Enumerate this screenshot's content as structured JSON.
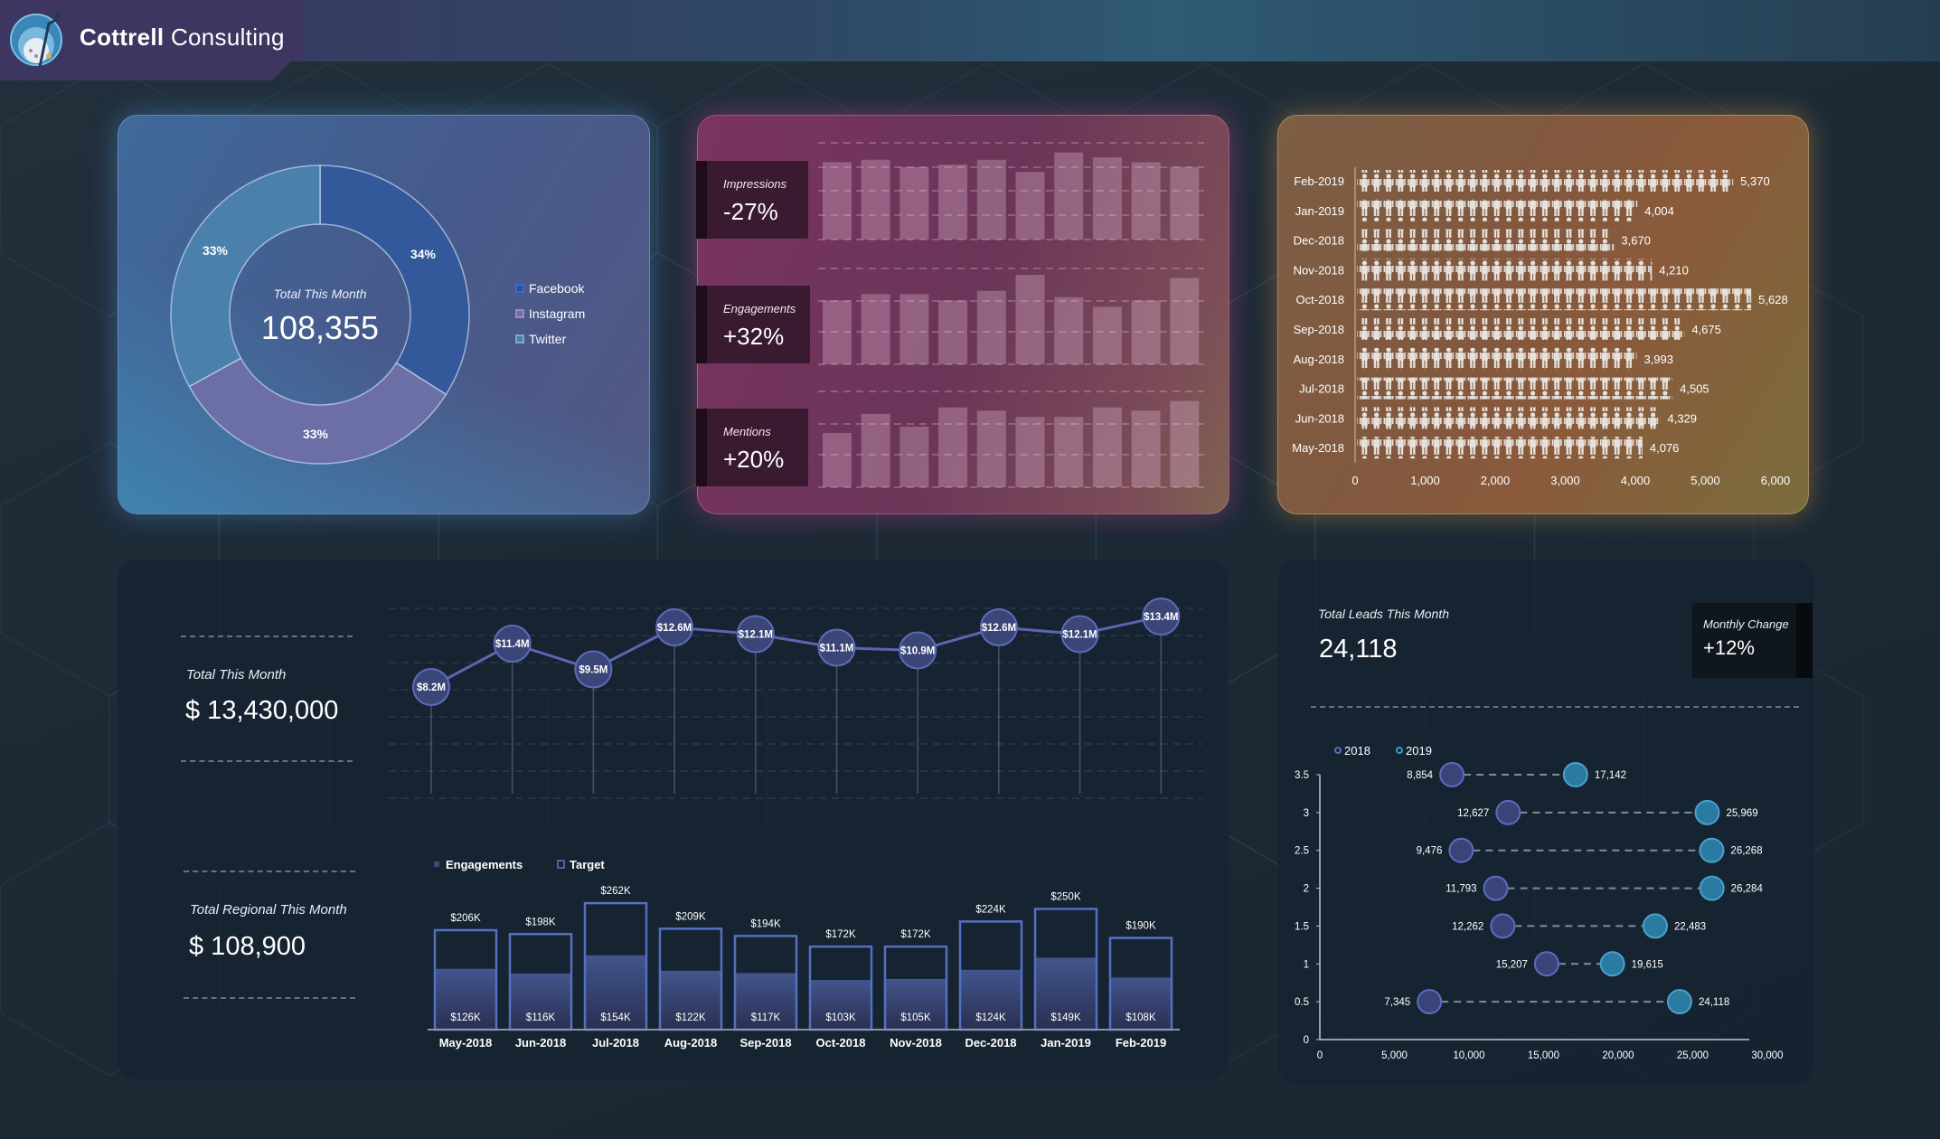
{
  "header": {
    "brand_bold": "Cottrell",
    "brand_rest": "Consulting"
  },
  "colors": {
    "facebook": "#33599a",
    "instagram": "#6b6fa6",
    "twitter": "#4a80ab",
    "line": "#5a66b0",
    "dot2018": "#3b4478",
    "dot2019": "#2b7aa2"
  },
  "social": {
    "center_label": "Total This Month",
    "center_value": "108,355",
    "slices": [
      {
        "name": "Facebook",
        "percent": 34,
        "label": "34%"
      },
      {
        "name": "Instagram",
        "percent": 33,
        "label": "33%"
      },
      {
        "name": "Twitter",
        "percent": 33,
        "label": "33%"
      }
    ]
  },
  "metrics": [
    {
      "label": "Impressions",
      "change": "-27%",
      "values": [
        3.2,
        3.3,
        3.0,
        3.1,
        3.3,
        2.8,
        3.6,
        3.4,
        3.2,
        3.0
      ],
      "max": 4
    },
    {
      "label": "Engagements",
      "change": "+32%",
      "values": [
        2.0,
        2.2,
        2.2,
        2.0,
        2.3,
        2.8,
        2.1,
        1.8,
        2.0,
        2.7
      ],
      "max": 3
    },
    {
      "label": "Mentions",
      "change": "+20%",
      "values": [
        1.7,
        2.3,
        1.9,
        2.5,
        2.4,
        2.2,
        2.2,
        2.5,
        2.4,
        2.7
      ],
      "max": 3
    }
  ],
  "visitors": {
    "months": [
      "Feb-2019",
      "Jan-2019",
      "Dec-2018",
      "Nov-2018",
      "Oct-2018",
      "Sep-2018",
      "Aug-2018",
      "Jul-2018",
      "Jun-2018",
      "May-2018"
    ],
    "values": [
      5370,
      4004,
      3670,
      4210,
      5628,
      4675,
      3993,
      4505,
      4329,
      4076
    ],
    "labels": [
      "5,370",
      "4,004",
      "3,670",
      "4,210",
      "5,628",
      "4,675",
      "3,993",
      "4,505",
      "4,329",
      "4,076"
    ],
    "ticks": [
      "0",
      "1,000",
      "2,000",
      "3,000",
      "4,000",
      "5,000",
      "6,000"
    ],
    "xlim": [
      0,
      6000
    ]
  },
  "revenue": {
    "total_label": "Total This Month",
    "total_value": "$ 13,430,000",
    "values": [
      8.2,
      11.4,
      9.5,
      12.6,
      12.1,
      11.1,
      10.9,
      12.6,
      12.1,
      13.4
    ],
    "labels": [
      "$8.2M",
      "$11.4M",
      "$9.5M",
      "$12.6M",
      "$12.1M",
      "$11.1M",
      "$10.9M",
      "$12.6M",
      "$12.1M",
      "$13.4M"
    ],
    "ylim": [
      0,
      14
    ]
  },
  "regional": {
    "total_label": "Total  Regional This Month",
    "total_value": "$ 108,900",
    "legend": [
      "Engagements",
      "Target"
    ],
    "categories": [
      "May-2018",
      "Jun-2018",
      "Jul-2018",
      "Aug-2018",
      "Sep-2018",
      "Oct-2018",
      "Nov-2018",
      "Dec-2018",
      "Jan-2019",
      "Feb-2019"
    ],
    "target": [
      206,
      198,
      262,
      209,
      194,
      172,
      172,
      224,
      250,
      190
    ],
    "target_labels": [
      "$206K",
      "$198K",
      "$262K",
      "$209K",
      "$194K",
      "$172K",
      "$172K",
      "$224K",
      "$250K",
      "$190K"
    ],
    "engagements": [
      126,
      116,
      154,
      122,
      117,
      103,
      105,
      124,
      149,
      108
    ],
    "engagement_labels": [
      "$126K",
      "$116K",
      "$154K",
      "$122K",
      "$117K",
      "$103K",
      "$105K",
      "$124K",
      "$149K",
      "$108K"
    ]
  },
  "leads": {
    "total_label": "Total  Leads This Month",
    "total_value": "24,118",
    "change_label": "Monthly Change",
    "change_value": "+12%",
    "legend": [
      "2018",
      "2019"
    ],
    "rows": [
      {
        "y": 3.5,
        "v2018": 8854,
        "l2018": "8,854",
        "v2019": 17142,
        "l2019": "17,142"
      },
      {
        "y": 3,
        "v2018": 12627,
        "l2018": "12,627",
        "v2019": 25969,
        "l2019": "25,969"
      },
      {
        "y": 2.5,
        "v2018": 9476,
        "l2018": "9,476",
        "v2019": 26268,
        "l2019": "26,268"
      },
      {
        "y": 2,
        "v2018": 11793,
        "l2018": "11,793",
        "v2019": 26284,
        "l2019": "26,284"
      },
      {
        "y": 1.5,
        "v2018": 12262,
        "l2018": "12,262",
        "v2019": 22483,
        "l2019": "22,483"
      },
      {
        "y": 1,
        "v2018": 15207,
        "l2018": "15,207",
        "v2019": 19615,
        "l2019": "19,615"
      },
      {
        "y": 0.5,
        "v2018": 7345,
        "l2018": "7,345",
        "v2019": 24118,
        "l2019": "24,118"
      }
    ],
    "xticks": [
      "0",
      "5,000",
      "10,000",
      "15,000",
      "20,000",
      "25,000",
      "30,000"
    ],
    "yticks": [
      "0",
      "0.5",
      "1",
      "1.5",
      "2",
      "2.5",
      "3",
      "3.5"
    ],
    "xlim": [
      0,
      30000
    ],
    "ylim": [
      0,
      3.5
    ]
  }
}
